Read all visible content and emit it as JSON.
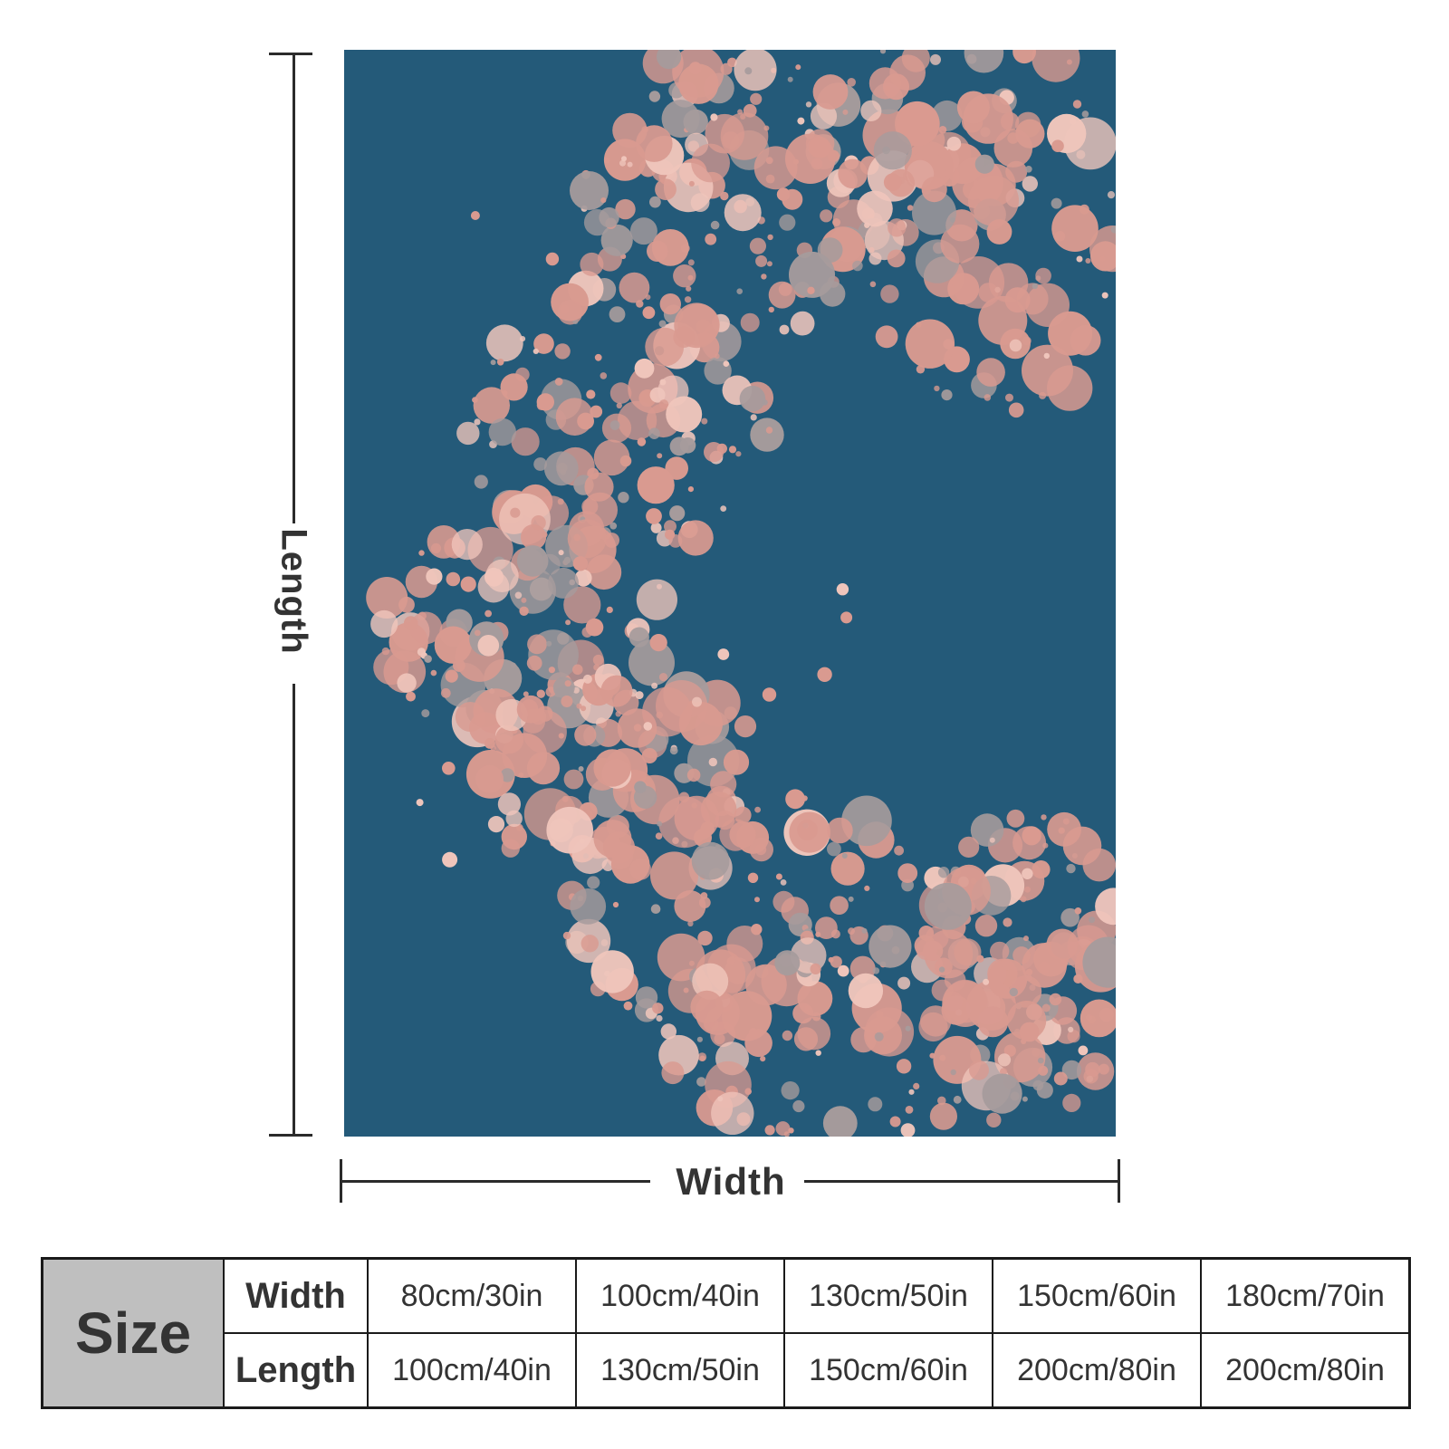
{
  "dimensions": {
    "length_label": "Length",
    "width_label": "Width"
  },
  "colors": {
    "blanket_background": "#245a79",
    "splatter_pink": "#d99a90",
    "splatter_grey": "#a69b9c",
    "splatter_light": "#efc5bb"
  },
  "size_table": {
    "header": "Size",
    "rows": [
      {
        "label": "Width",
        "values": [
          "80cm/30in",
          "100cm/40in",
          "130cm/50in",
          "150cm/60in",
          "180cm/70in"
        ]
      },
      {
        "label": "Length",
        "values": [
          "100cm/40in",
          "130cm/50in",
          "150cm/60in",
          "200cm/80in",
          "200cm/80in"
        ]
      }
    ]
  }
}
